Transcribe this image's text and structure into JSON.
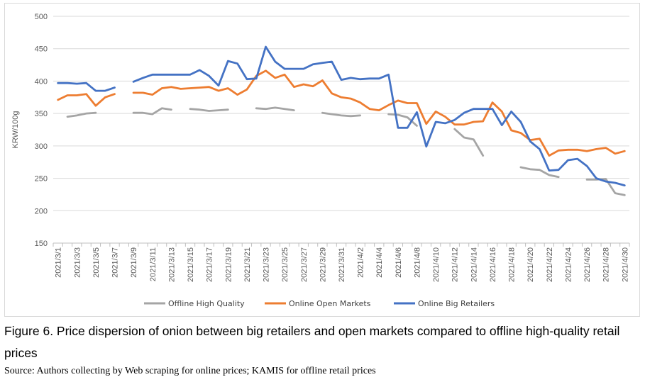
{
  "caption": "Figure 6. Price dispersion of onion between big retailers and open markets compared to offline high-quality retail prices",
  "source": "Source: Authors collecting by Web scraping for online prices; KAMIS for offline retail prices",
  "chart_data": {
    "type": "line",
    "title": "",
    "xlabel": "",
    "ylabel": "KRW/100g",
    "ylim": [
      150,
      500
    ],
    "yticks": [
      150,
      200,
      250,
      300,
      350,
      400,
      450,
      500
    ],
    "grid": true,
    "legend_position": "bottom",
    "x": [
      "2021/3/1",
      "2021/3/2",
      "2021/3/3",
      "2021/3/4",
      "2021/3/5",
      "2021/3/6",
      "2021/3/7",
      "2021/3/8",
      "2021/3/9",
      "2021/3/10",
      "2021/3/11",
      "2021/3/12",
      "2021/3/13",
      "2021/3/14",
      "2021/3/15",
      "2021/3/16",
      "2021/3/17",
      "2021/3/18",
      "2021/3/19",
      "2021/3/20",
      "2021/3/21",
      "2021/3/22",
      "2021/3/23",
      "2021/3/24",
      "2021/3/25",
      "2021/3/26",
      "2021/3/27",
      "2021/3/28",
      "2021/3/29",
      "2021/3/30",
      "2021/3/31",
      "2021/4/1",
      "2021/4/2",
      "2021/4/3",
      "2021/4/4",
      "2021/4/5",
      "2021/4/6",
      "2021/4/7",
      "2021/4/8",
      "2021/4/9",
      "2021/4/10",
      "2021/4/11",
      "2021/4/12",
      "2021/4/13",
      "2021/4/14",
      "2021/4/15",
      "2021/4/16",
      "2021/4/17",
      "2021/4/18",
      "2021/4/19",
      "2021/4/20",
      "2021/4/21",
      "2021/4/22",
      "2021/4/23",
      "2021/4/24",
      "2021/4/25",
      "2021/4/26",
      "2021/4/27",
      "2021/4/28",
      "2021/4/29",
      "2021/4/30"
    ],
    "xticklabels": [
      "2021/3/1",
      "2021/3/3",
      "2021/3/5",
      "2021/3/7",
      "2021/3/9",
      "2021/3/11",
      "2021/3/13",
      "2021/3/15",
      "2021/3/17",
      "2021/3/19",
      "2021/3/21",
      "2021/3/23",
      "2021/3/25",
      "2021/3/27",
      "2021/3/29",
      "2021/3/31",
      "2021/4/2",
      "2021/4/4",
      "2021/4/6",
      "2021/4/8",
      "2021/4/10",
      "2021/4/12",
      "2021/4/14",
      "2021/4/16",
      "2021/4/18",
      "2021/4/20",
      "2021/4/22",
      "2021/4/24",
      "2021/4/26",
      "2021/4/28",
      "2021/4/30"
    ],
    "series": [
      {
        "name": "Offline High Quality",
        "color": "#a5a5a5",
        "values": [
          null,
          345,
          347,
          350,
          351,
          null,
          null,
          null,
          351,
          351,
          349,
          358,
          356,
          null,
          357,
          356,
          354,
          355,
          356,
          null,
          null,
          358,
          357,
          359,
          357,
          355,
          null,
          null,
          351,
          349,
          347,
          346,
          347,
          null,
          null,
          349,
          348,
          344,
          331,
          null,
          null,
          null,
          326,
          313,
          310,
          285,
          null,
          null,
          null,
          267,
          264,
          263,
          255,
          252,
          null,
          null,
          248,
          248,
          249,
          227,
          224
        ]
      },
      {
        "name": "Online Open Markets",
        "color": "#ed7d31",
        "values": [
          371,
          378,
          378,
          380,
          362,
          375,
          380,
          null,
          382,
          382,
          379,
          389,
          391,
          388,
          389,
          390,
          391,
          385,
          389,
          379,
          387,
          408,
          416,
          405,
          410,
          391,
          395,
          392,
          401,
          381,
          375,
          373,
          367,
          357,
          355,
          363,
          370,
          366,
          366,
          334,
          353,
          345,
          333,
          333,
          337,
          338,
          367,
          353,
          324,
          320,
          309,
          311,
          285,
          293,
          294,
          294,
          292,
          295,
          297,
          288,
          292
        ]
      },
      {
        "name": "Online Big Retailers",
        "color": "#4472c4",
        "values": [
          397,
          397,
          396,
          397,
          385,
          385,
          390,
          null,
          399,
          405,
          410,
          410,
          410,
          410,
          410,
          417,
          408,
          393,
          431,
          427,
          403,
          404,
          453,
          430,
          419,
          419,
          419,
          426,
          428,
          430,
          402,
          405,
          403,
          404,
          404,
          410,
          328,
          328,
          352,
          299,
          337,
          335,
          340,
          351,
          357,
          357,
          357,
          332,
          353,
          337,
          307,
          295,
          262,
          263,
          278,
          280,
          269,
          250,
          245,
          243,
          239
        ]
      }
    ]
  }
}
